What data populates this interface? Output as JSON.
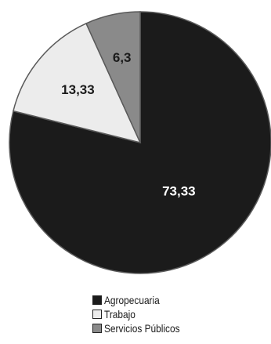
{
  "chart_data": {
    "type": "pie",
    "slices": [
      {
        "label": "Agropecuaria",
        "value": 73.33,
        "display": "73,33",
        "color": "#1b1b1b",
        "label_color": "#ffffff"
      },
      {
        "label": "Trabajo",
        "value": 13.33,
        "display": "13,33",
        "color": "#ececec",
        "label_color": "#1b1b1b"
      },
      {
        "label": "Servicios Públicos",
        "value": 6.3,
        "display": "6,3",
        "color": "#8a8a8a",
        "label_color": "#1b1b1b"
      }
    ],
    "start": "12 o'clock",
    "direction": "clockwise",
    "legend_position": "bottom"
  }
}
